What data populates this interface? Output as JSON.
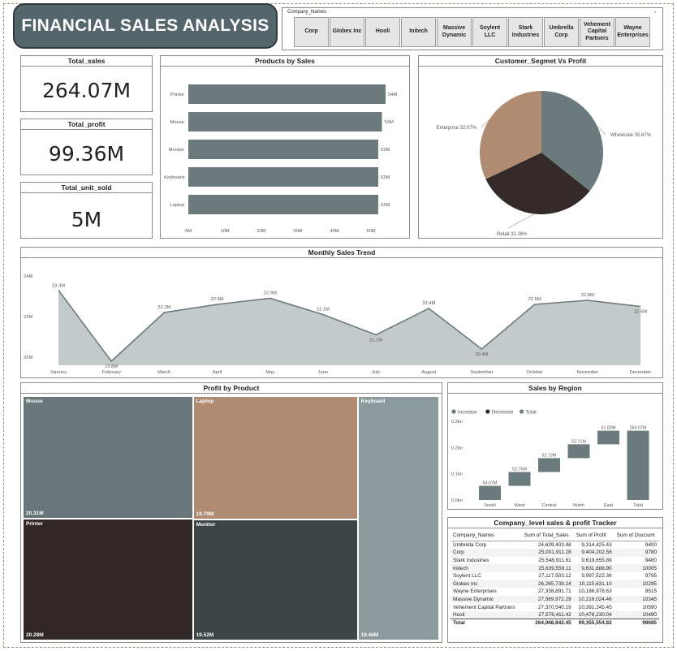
{
  "title": "FINANCIAL SALES ANALYSIS",
  "slicer": {
    "title": "Company_Names",
    "options": [
      "Corp",
      "Globex Inc",
      "Hooli",
      "Initech",
      "Massive Dynamic",
      "Soylent LLC",
      "Stark Industries",
      "Umbrella Corp",
      "Vehement Capital Partners",
      "Wayne Enterprises"
    ]
  },
  "kpis": {
    "total_sales": {
      "label": "Total_sales",
      "value": "264.07M"
    },
    "total_profit": {
      "label": "Total_profit",
      "value": "99.36M"
    },
    "total_unit_sold": {
      "label": "Total_unit_sold",
      "value": "5M"
    }
  },
  "colors": {
    "primary": "#6b7a7d",
    "secondary": "#b08c73",
    "dark": "#352a2a",
    "area_fill": "#c4c9cb",
    "treemap_mouse": "#69777a",
    "treemap_laptop": "#ae8b72",
    "treemap_keyboard": "#8b9a9c",
    "treemap_printer": "#322828",
    "treemap_monitor": "#3d4546"
  },
  "chart_data": [
    {
      "type": "bar",
      "title": "Products by Sales",
      "orientation": "horizontal",
      "categories": [
        "Printer",
        "Mouse",
        "Monitor",
        "Keyboard",
        "Laptop"
      ],
      "values": [
        54,
        53,
        52,
        52,
        52
      ],
      "data_labels": [
        "54M",
        "53M",
        "52M",
        "52M",
        "52M"
      ],
      "xlim": [
        0,
        54
      ],
      "x_ticks": [
        "0M",
        "10M",
        "20M",
        "30M",
        "40M",
        "50M"
      ],
      "grid": false
    },
    {
      "type": "pie",
      "title": "Customer_Segmet Vs Profit",
      "categories": [
        "Wholesale",
        "Retail",
        "Enterprise"
      ],
      "values": [
        35.67,
        32.26,
        32.07
      ],
      "labels": [
        "Wholesale 35.67%",
        "Retail 32.26%",
        "Enterprise 32.07%"
      ]
    },
    {
      "type": "area",
      "title": "Monthly Sales Trend",
      "x": [
        "January",
        "February",
        "March",
        "April",
        "May",
        "June",
        "July",
        "August",
        "September",
        "October",
        "November",
        "December"
      ],
      "values": [
        23.3,
        19.8,
        22.2,
        22.6,
        22.9,
        22.1,
        21.1,
        22.4,
        20.4,
        22.6,
        22.8,
        22.5
      ],
      "data_labels": [
        "23.3M",
        "19.8M",
        "22.2M",
        "22.6M",
        "22.9M",
        "22.1M",
        "21.1M",
        "22.4M",
        "20.4M",
        "22.6M",
        "22.8M",
        "22.5M"
      ],
      "ylim": [
        19.6,
        24
      ],
      "y_ticks": [
        {
          "v": 24,
          "label": "24M"
        },
        {
          "v": 22,
          "label": "22M"
        },
        {
          "v": 20,
          "label": "20M"
        }
      ]
    },
    {
      "type": "treemap",
      "title": "Profit by Product",
      "categories": [
        "Mouse",
        "Printer",
        "Laptop",
        "Monitor",
        "Keyboard"
      ],
      "values": [
        20.31,
        20.28,
        19.79,
        19.52,
        19.46
      ],
      "data_labels": [
        "20.31M",
        "20.28M",
        "19.79M",
        "19.52M",
        "19.46M"
      ]
    },
    {
      "type": "waterfall",
      "title": "Sales by Region",
      "legend": [
        "Increase",
        "Decrease",
        "Total"
      ],
      "legend_position": "top-left",
      "categories": [
        "South",
        "West",
        "Central",
        "North",
        "East",
        "Total"
      ],
      "values": [
        54.07,
        52.76,
        52.72,
        52.71,
        51.82,
        264.07
      ],
      "data_labels": [
        "54.07M",
        "52.76M",
        "52.72M",
        "52.71M",
        "51.82M",
        "264.07M"
      ],
      "ylim": [
        0,
        0.3
      ],
      "y_ticks": [
        {
          "v": 0.3,
          "label": "0.3bn"
        },
        {
          "v": 0.2,
          "label": "0.2bn"
        },
        {
          "v": 0.1,
          "label": "0.1bn"
        },
        {
          "v": 0,
          "label": "0.0bn"
        }
      ]
    },
    {
      "type": "table",
      "title": "Company_level sales & profit Tracker",
      "columns": [
        "Company_Names",
        "Sum of Total_Sales",
        "Sum of Profit",
        "Sum of Discount"
      ],
      "rows": [
        [
          "Umbrella Corp",
          "24,639,403.48",
          "9,314,425.43",
          "9400"
        ],
        [
          "Corp",
          "25,001,911.28",
          "9,404,202.56",
          "9780"
        ],
        [
          "Stark Industries",
          "25,548,911.61",
          "9,619,655.89",
          "9480"
        ],
        [
          "Initech",
          "25,639,559.11",
          "9,631,688.90",
          "10005"
        ],
        [
          "Soylent LLC",
          "27,117,503.12",
          "9,997,522.36",
          "9795"
        ],
        [
          "Globex Inc",
          "26,265,738.24",
          "10,115,631.10",
          "10295"
        ],
        [
          "Wayne Enterprises",
          "27,338,891.71",
          "10,186,978.63",
          "9515"
        ],
        [
          "Massive Dynamic",
          "27,569,972.29",
          "10,216,024.46",
          "10345"
        ],
        [
          "Vehement Capital Partners",
          "27,370,540.19",
          "10,391,245.45",
          "10590"
        ],
        [
          "Hooli",
          "27,576,411.42",
          "10,478,230.04",
          "10490"
        ]
      ],
      "total": [
        "Total",
        "264,068,842.45",
        "99,355,554.82",
        "99695"
      ]
    }
  ]
}
